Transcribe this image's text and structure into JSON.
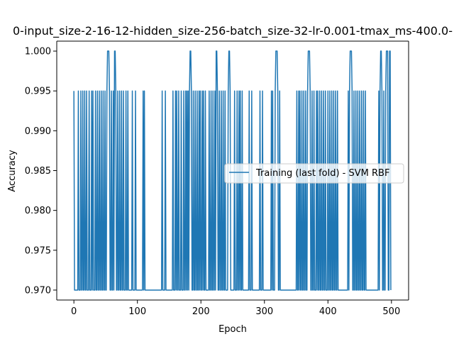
{
  "chart_data": {
    "type": "line",
    "title": "0-input_size-2-16-12-hidden_size-256-batch_size-32-lr-0.001-tmax_ms-400.0-",
    "xlabel": "Epoch",
    "ylabel": "Accuracy",
    "xlim": [
      -27,
      527
    ],
    "ylim": [
      0.96875,
      1.00125
    ],
    "grid": false,
    "legend_position": "center-right",
    "x_ticks": [
      0,
      100,
      200,
      300,
      400,
      500
    ],
    "x_tick_labels": [
      "0",
      "100",
      "200",
      "300",
      "400",
      "500"
    ],
    "y_ticks": [
      0.97,
      0.975,
      0.98,
      0.985,
      0.99,
      0.995,
      1.0
    ],
    "y_tick_labels": [
      "0.970",
      "0.975",
      "0.980",
      "0.985",
      "0.990",
      "0.995",
      "1.000"
    ],
    "series": [
      {
        "name": "Training (last fold) - SVM RBF",
        "color": "#1f77b4",
        "x_start": 0,
        "x_end": 499,
        "baseline": 0.995,
        "low_value": 0.97,
        "high_value": 1.0,
        "high_epochs": [
          53,
          54,
          55,
          64,
          65,
          183,
          184,
          224,
          225,
          244,
          245,
          318,
          319,
          320,
          369,
          370,
          371,
          435,
          436,
          437,
          483,
          484,
          492,
          493,
          494,
          497,
          498
        ],
        "low_epochs": [
          1,
          2,
          3,
          4,
          5,
          6,
          8,
          9,
          10,
          12,
          13,
          15,
          16,
          18,
          19,
          21,
          22,
          23,
          25,
          26,
          27,
          29,
          31,
          32,
          33,
          35,
          36,
          38,
          39,
          41,
          42,
          44,
          45,
          47,
          48,
          50,
          51,
          57,
          58,
          60,
          61,
          63,
          67,
          68,
          70,
          71,
          73,
          74,
          76,
          77,
          79,
          80,
          81,
          83,
          84,
          86,
          87,
          88,
          89,
          90,
          91,
          93,
          94,
          95,
          96,
          98,
          99,
          100,
          101,
          102,
          103,
          104,
          105,
          106,
          107,
          108,
          110,
          112,
          113,
          114,
          115,
          116,
          117,
          118,
          119,
          120,
          121,
          122,
          123,
          124,
          125,
          126,
          127,
          128,
          129,
          130,
          131,
          132,
          133,
          134,
          135,
          136,
          137,
          138,
          140,
          141,
          142,
          143,
          145,
          146,
          147,
          148,
          149,
          150,
          151,
          152,
          153,
          154,
          155,
          157,
          158,
          159,
          161,
          163,
          164,
          166,
          167,
          168,
          170,
          171,
          172,
          174,
          175,
          177,
          179,
          181,
          186,
          187,
          189,
          190,
          192,
          193,
          195,
          196,
          198,
          200,
          201,
          203,
          205,
          206,
          208,
          209,
          210,
          211,
          212,
          214,
          215,
          217,
          218,
          220,
          221,
          223,
          227,
          228,
          230,
          231,
          233,
          234,
          236,
          237,
          239,
          240,
          241,
          242,
          247,
          248,
          249,
          250,
          251,
          252,
          254,
          255,
          256,
          258,
          259,
          261,
          263,
          264,
          266,
          267,
          268,
          269,
          270,
          271,
          272,
          273,
          274,
          275,
          277,
          278,
          279,
          281,
          282,
          283,
          284,
          285,
          286,
          287,
          288,
          289,
          290,
          291,
          292,
          294,
          295,
          296,
          298,
          299,
          300,
          301,
          302,
          303,
          304,
          305,
          306,
          307,
          308,
          309,
          310,
          312,
          314,
          315,
          316,
          322,
          323,
          325,
          326,
          327,
          328,
          329,
          330,
          331,
          332,
          333,
          334,
          335,
          336,
          337,
          338,
          339,
          340,
          341,
          342,
          343,
          344,
          345,
          346,
          347,
          348,
          349,
          350,
          352,
          353,
          355,
          357,
          358,
          360,
          361,
          363,
          364,
          366,
          367,
          373,
          374,
          376,
          377,
          379,
          380,
          381,
          383,
          385,
          386,
          388,
          389,
          391,
          392,
          394,
          395,
          397,
          398,
          399,
          401,
          402,
          404,
          405,
          407,
          408,
          410,
          411,
          413,
          414,
          416,
          417,
          418,
          419,
          420,
          421,
          422,
          423,
          424,
          425,
          426,
          427,
          428,
          429,
          430,
          431,
          433,
          439,
          440,
          442,
          443,
          445,
          446,
          448,
          449,
          451,
          452,
          454,
          455,
          457,
          458,
          460,
          461,
          462,
          463,
          464,
          465,
          466,
          467,
          468,
          469,
          470,
          471,
          472,
          473,
          474,
          475,
          476,
          477,
          478,
          479,
          481,
          486,
          487,
          489,
          490,
          495,
          496,
          499
        ]
      }
    ]
  }
}
